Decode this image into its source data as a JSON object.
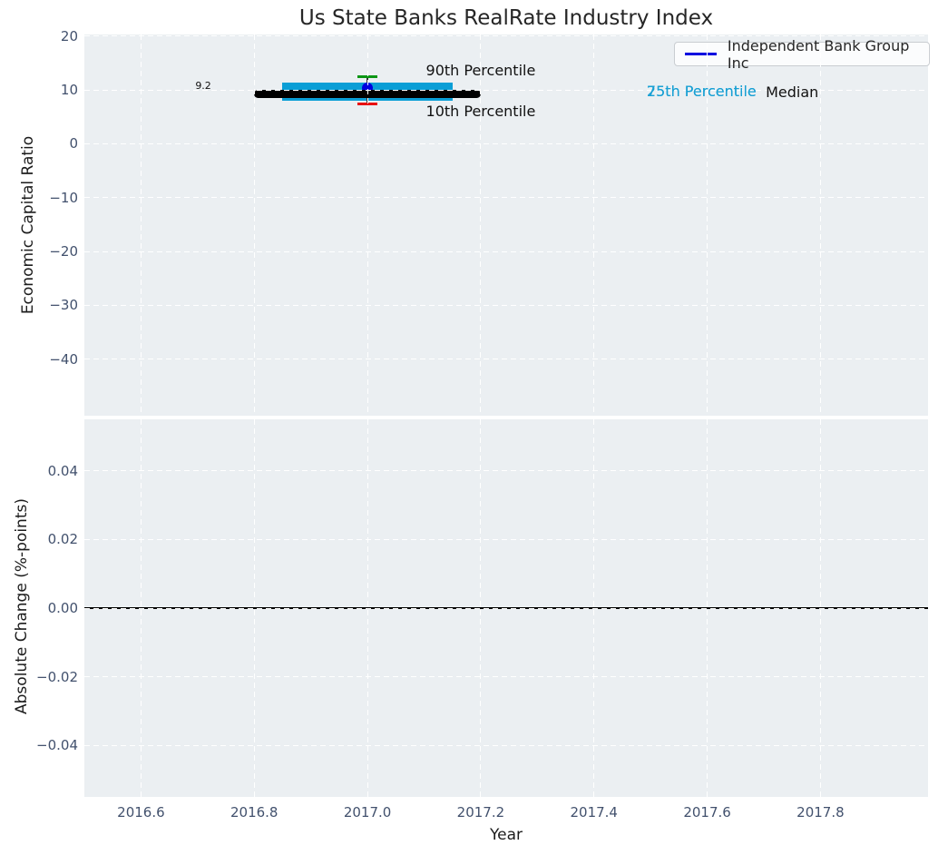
{
  "title": "Us State Banks RealRate Industry Index",
  "legend": {
    "label": "Independent Bank Group Inc"
  },
  "colors": {
    "plot_bg": "#ebeff2",
    "grid": "#ffffff",
    "tick_label": "#42516d",
    "title_text": "#262626",
    "axis_label_text": "#1c1c1c",
    "annotation_text": "#111111",
    "box_fill": "#0a9ed6",
    "percentile_label_text": "#18a0d4",
    "median_line": "#000000",
    "p90_cap": "#0b9615",
    "p10_cap": "#e81010",
    "company_marker": "#0000e0",
    "legend_line": "#0000e0",
    "whisker": "#333333",
    "zero_line": "#000000"
  },
  "chart_data": [
    {
      "type": "box",
      "panel": "top",
      "title": "Us State Banks RealRate Industry Index",
      "ylabel": "Economic Capital Ratio",
      "xlim": [
        2016.5,
        2017.99
      ],
      "ylim": [
        -50.5,
        20.3
      ],
      "grid": true,
      "legend_position": "upper right",
      "yticks": [
        {
          "v": 20,
          "label": "20"
        },
        {
          "v": 10,
          "label": "10"
        },
        {
          "v": 0,
          "label": "0"
        },
        {
          "v": -10,
          "label": "−10"
        },
        {
          "v": -20,
          "label": "−20"
        },
        {
          "v": -30,
          "label": "−30"
        },
        {
          "v": -40,
          "label": "−40"
        }
      ],
      "xticks": [
        {
          "v": 2016.6
        },
        {
          "v": 2016.8
        },
        {
          "v": 2017.0
        },
        {
          "v": 2017.2
        },
        {
          "v": 2017.4
        },
        {
          "v": 2017.6
        },
        {
          "v": 2017.8
        }
      ],
      "series": {
        "name": "Independent Bank Group Inc",
        "x": 2017.0,
        "company_value": 10.35,
        "median": 9.2,
        "median_span": [
          2016.8,
          2017.2
        ],
        "p90": 12.4,
        "p75": 11.4,
        "p25": 8.0,
        "p10": 7.4,
        "box_span": [
          2016.85,
          2017.15
        ]
      },
      "annotations": [
        {
          "name": "median-value-label",
          "text": "9.2",
          "x": 2016.71,
          "y": 10.7,
          "size": 11
        },
        {
          "name": "p90-label",
          "text": "90th Percentile",
          "x": 2017.2,
          "y": 13.6,
          "size": 16
        },
        {
          "name": "p10-label",
          "text": "10th Percentile",
          "x": 2017.2,
          "y": 5.9,
          "size": 16
        },
        {
          "name": "p75-label",
          "text": "75th Percentile",
          "x": 2017.59,
          "y": 9.75,
          "size": 16,
          "color_key": "percentile_label_text"
        },
        {
          "name": "p25-label",
          "text": "25th Percentile",
          "x": 2017.59,
          "y": 9.75,
          "size": 16,
          "color_key": "percentile_label_text"
        },
        {
          "name": "median-label",
          "text": "Median",
          "x": 2017.75,
          "y": 9.55,
          "size": 16
        }
      ]
    },
    {
      "type": "line",
      "panel": "bottom",
      "ylabel": "Absolute Change (%-points)",
      "xlabel": "Year",
      "xlim": [
        2016.5,
        2017.99
      ],
      "ylim": [
        -0.055,
        0.055
      ],
      "grid": true,
      "zero_line": 0.0,
      "series": [],
      "yticks": [
        {
          "v": 0.04,
          "label": "0.04"
        },
        {
          "v": 0.02,
          "label": "0.02"
        },
        {
          "v": 0,
          "label": "0.00"
        },
        {
          "v": -0.02,
          "label": "−0.02"
        },
        {
          "v": -0.04,
          "label": "−0.04"
        }
      ],
      "xticks": [
        {
          "v": 2016.6,
          "label": "2016.6"
        },
        {
          "v": 2016.8,
          "label": "2016.8"
        },
        {
          "v": 2017.0,
          "label": "2017.0"
        },
        {
          "v": 2017.2,
          "label": "2017.2"
        },
        {
          "v": 2017.4,
          "label": "2017.4"
        },
        {
          "v": 2017.6,
          "label": "2017.6"
        },
        {
          "v": 2017.8,
          "label": "2017.8"
        }
      ]
    }
  ]
}
